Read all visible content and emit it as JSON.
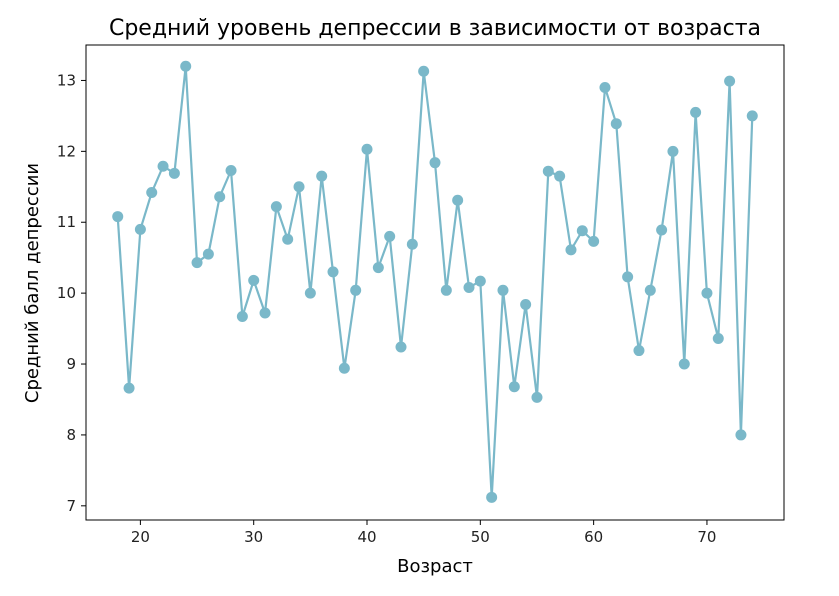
{
  "chart_data": {
    "type": "line",
    "title": "Средний уровень депрессии в зависимости от возраста",
    "xlabel": "Возраст",
    "ylabel": "Средний балл депрессии",
    "xlim": [
      15.2,
      76.8
    ],
    "ylim": [
      6.8,
      13.5
    ],
    "xticks": [
      20,
      30,
      40,
      50,
      60,
      70
    ],
    "yticks": [
      7,
      8,
      9,
      10,
      11,
      12,
      13
    ],
    "grid": false,
    "line_color": "#7ab8c9",
    "x": [
      18,
      19,
      20,
      21,
      22,
      23,
      24,
      25,
      26,
      27,
      28,
      29,
      30,
      31,
      32,
      33,
      34,
      35,
      36,
      37,
      38,
      39,
      40,
      41,
      42,
      43,
      44,
      45,
      46,
      47,
      48,
      49,
      50,
      51,
      52,
      53,
      54,
      55,
      56,
      57,
      58,
      59,
      60,
      61,
      62,
      63,
      64,
      65,
      66,
      67,
      68,
      69,
      70,
      71,
      72,
      73,
      74
    ],
    "y": [
      11.08,
      8.66,
      10.9,
      11.42,
      11.79,
      11.69,
      13.2,
      10.43,
      10.55,
      11.36,
      11.73,
      9.67,
      10.18,
      9.72,
      11.22,
      10.76,
      11.5,
      10.0,
      11.65,
      10.3,
      8.94,
      10.04,
      12.03,
      10.36,
      10.8,
      9.24,
      10.69,
      13.13,
      11.84,
      10.04,
      11.31,
      10.08,
      10.17,
      7.12,
      10.04,
      8.68,
      9.84,
      8.53,
      11.72,
      11.65,
      10.61,
      10.88,
      10.73,
      12.9,
      12.39,
      10.23,
      9.19,
      10.04,
      10.89,
      12.0,
      9.0,
      12.55,
      10.0,
      9.36,
      12.99,
      8.0,
      12.5
    ]
  }
}
